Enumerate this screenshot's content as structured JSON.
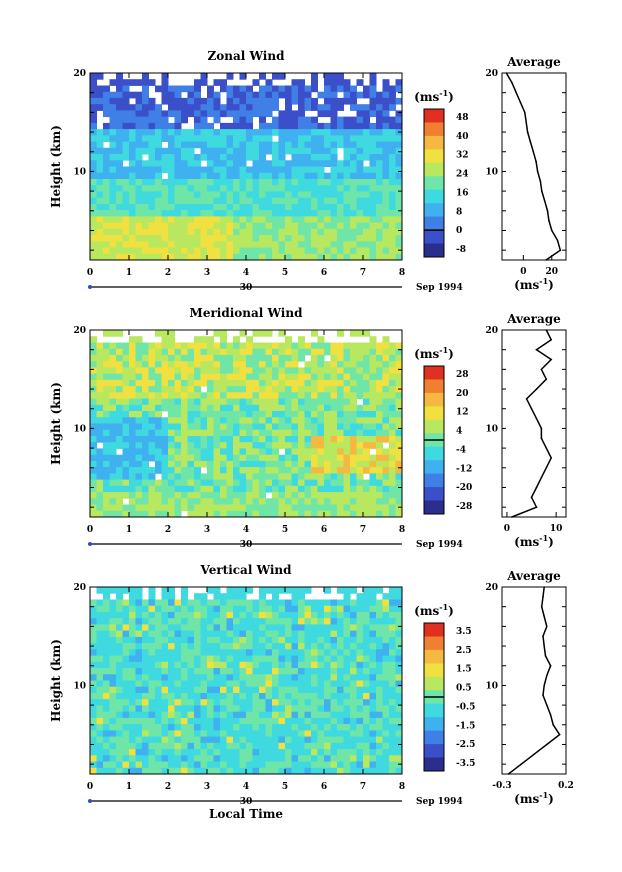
{
  "colors": {
    "scale": [
      "#2b2e8c",
      "#3b4fc9",
      "#3f7fe6",
      "#3fb0f0",
      "#3fd9e0",
      "#6fe6a8",
      "#b8e860",
      "#f0e040",
      "#f5b840",
      "#f08030",
      "#e03020"
    ]
  },
  "chart_data": [
    {
      "type": "heatmap",
      "title": "Zonal Wind",
      "ylabel": "Height (km)",
      "xlim": [
        0,
        8
      ],
      "ylim": [
        1,
        20
      ],
      "x_ticks": [
        "0",
        "1",
        "2",
        "3",
        "4",
        "5",
        "6",
        "7",
        "8"
      ],
      "y_ticks": [
        "10",
        "20"
      ],
      "date_label": "30",
      "month_label": "Sep 1994",
      "colorbar": {
        "unit": "(ms",
        "unit_exp": "-1",
        "unit_close": ")",
        "labels": [
          "48",
          "40",
          "32",
          "24",
          "16",
          "8",
          "0",
          "-8"
        ]
      },
      "profile": {
        "title": "Average",
        "xlabel": "(ms",
        "xlabel_exp": "-1",
        "xlabel_close": ")",
        "xlim": [
          -15,
          30
        ],
        "x_ticks": [
          "0",
          "20"
        ],
        "x_tick_values": [
          0,
          20
        ],
        "y_ticks": [
          "10",
          "20"
        ],
        "heights": [
          1,
          2,
          3,
          4,
          5,
          6,
          7,
          8,
          9,
          10,
          11,
          12,
          13,
          14,
          15,
          16,
          17,
          18,
          19,
          20
        ],
        "values": [
          16,
          26,
          24,
          20,
          18,
          17,
          15,
          13,
          12,
          10,
          9,
          7,
          5,
          3,
          2,
          1,
          -2,
          -5,
          -8,
          -12
        ]
      }
    },
    {
      "type": "heatmap",
      "title": "Meridional Wind",
      "ylabel": "Height (km)",
      "xlim": [
        0,
        8
      ],
      "ylim": [
        1,
        20
      ],
      "x_ticks": [
        "0",
        "1",
        "2",
        "3",
        "4",
        "5",
        "6",
        "7",
        "8"
      ],
      "y_ticks": [
        "10",
        "20"
      ],
      "date_label": "30",
      "month_label": "Sep 1994",
      "colorbar": {
        "unit": "(ms",
        "unit_exp": "-1",
        "unit_close": ")",
        "labels": [
          "28",
          "20",
          "12",
          "4",
          "-4",
          "-12",
          "-20",
          "-28"
        ]
      },
      "profile": {
        "title": "Average",
        "xlabel": "(ms",
        "xlabel_exp": "-1",
        "xlabel_close": ")",
        "xlim": [
          -1,
          12
        ],
        "x_ticks": [
          "0",
          "10"
        ],
        "x_tick_values": [
          0,
          10
        ],
        "y_ticks": [
          "10",
          "20"
        ],
        "heights": [
          1,
          2,
          3,
          4,
          5,
          6,
          7,
          8,
          9,
          10,
          11,
          12,
          13,
          14,
          15,
          16,
          17,
          18,
          19,
          20
        ],
        "values": [
          1,
          6,
          5,
          6,
          7,
          8,
          9,
          8,
          7,
          7,
          6,
          5,
          4,
          6,
          8,
          7,
          9,
          6,
          9,
          8
        ]
      }
    },
    {
      "type": "heatmap",
      "title": "Vertical Wind",
      "ylabel": "Height (km)",
      "xlabel": "Local Time",
      "xlim": [
        0,
        8
      ],
      "ylim": [
        1,
        20
      ],
      "x_ticks": [
        "0",
        "1",
        "2",
        "3",
        "4",
        "5",
        "6",
        "7",
        "8"
      ],
      "y_ticks": [
        "10",
        "20"
      ],
      "date_label": "30",
      "month_label": "Sep 1994",
      "colorbar": {
        "unit": "(ms",
        "unit_exp": "-1",
        "unit_close": ")",
        "labels": [
          "3.5",
          "2.5",
          "1.5",
          "0.5",
          "-0.5",
          "-1.5",
          "-2.5",
          "-3.5"
        ]
      },
      "profile": {
        "title": "Average",
        "xlabel": "(ms",
        "xlabel_exp": "-1",
        "xlabel_close": ")",
        "xlim": [
          -0.3,
          0.2
        ],
        "x_ticks": [
          "-0.3",
          "0.2"
        ],
        "x_tick_values": [
          -0.3,
          0.2
        ],
        "y_ticks": [
          "10",
          "20"
        ],
        "heights": [
          1,
          2,
          3,
          4,
          5,
          6,
          7,
          8,
          9,
          10,
          11,
          12,
          13,
          14,
          15,
          16,
          17,
          18,
          19,
          20
        ],
        "values": [
          -0.25,
          -0.15,
          -0.05,
          0.05,
          0.15,
          0.1,
          0.08,
          0.05,
          0.02,
          0.03,
          0.05,
          0.08,
          0.04,
          0.03,
          0.02,
          0.05,
          0.03,
          0.01,
          0.02,
          0.03
        ]
      }
    }
  ]
}
